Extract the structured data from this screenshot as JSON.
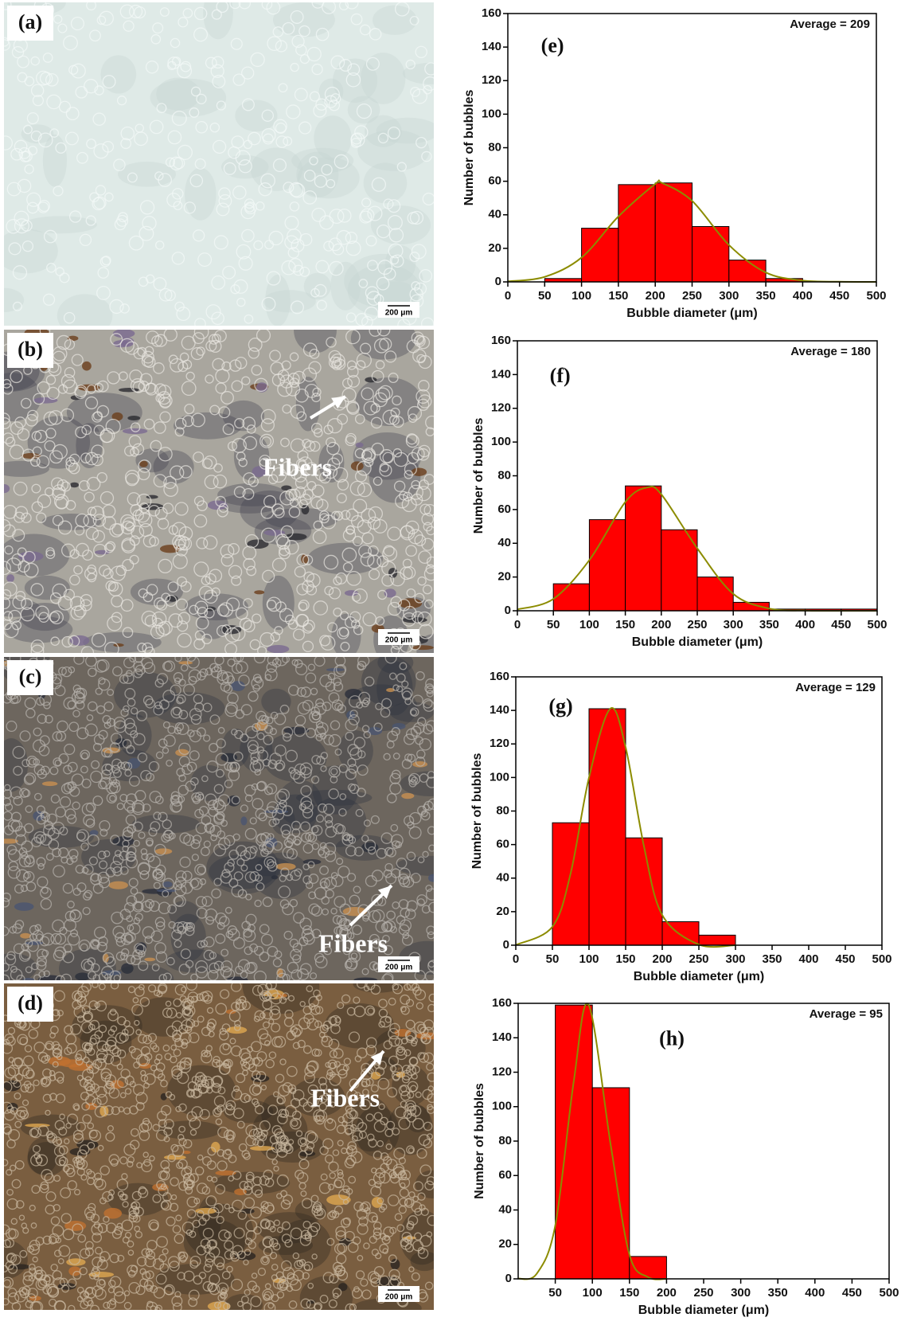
{
  "images": [
    {
      "label": "(a)",
      "scale_bar": "200 μm"
    },
    {
      "label": "(b)",
      "scale_bar": "200 μm",
      "annotation": "Fibers"
    },
    {
      "label": "(c)",
      "scale_bar": "200 μm",
      "annotation": "Fibers"
    },
    {
      "label": "(d)",
      "scale_bar": "200 μm",
      "annotation": "Fibers"
    }
  ],
  "chart_data": [
    {
      "type": "histogram",
      "title": "(e)",
      "annotation": "Average = 209",
      "x_label": "Bubble diameter (μm)",
      "y_label": "Number of bubbles",
      "color": "#ff0000",
      "bins": [
        0,
        50,
        100,
        150,
        200,
        250,
        300,
        350,
        400,
        450,
        500
      ],
      "values": [
        0,
        2,
        32,
        58,
        59,
        33,
        13,
        2,
        0,
        0
      ],
      "xlim": [
        0,
        500
      ],
      "xticks": [
        0,
        50,
        100,
        150,
        200,
        250,
        300,
        350,
        400,
        450,
        500
      ],
      "ylim": [
        0,
        160
      ],
      "yticks": [
        0,
        20,
        40,
        60,
        80,
        100,
        120,
        140,
        160
      ],
      "fit": {
        "color": "#8c8c00",
        "x": [
          0,
          50,
          100,
          150,
          200,
          209,
          250,
          300,
          350,
          400,
          450,
          500
        ],
        "values": [
          0.3,
          3,
          14.5,
          39,
          58.4,
          59,
          48.3,
          22,
          5.6,
          0.8,
          0.1,
          0
        ]
      }
    },
    {
      "type": "histogram",
      "title": "(f)",
      "annotation": "Average = 180",
      "x_label": "Bubble diameter (μm)",
      "y_label": "Number of bubbles",
      "color": "#ff0000",
      "bins": [
        0,
        50,
        100,
        150,
        200,
        250,
        300,
        350,
        400,
        450,
        500
      ],
      "values": [
        0,
        16,
        54,
        74,
        48,
        20,
        5,
        1,
        1,
        1
      ],
      "xlim": [
        0,
        500
      ],
      "xticks": [
        0,
        50,
        100,
        150,
        200,
        250,
        300,
        350,
        400,
        450,
        500
      ],
      "ylim": [
        0,
        160
      ],
      "yticks": [
        0,
        20,
        40,
        60,
        80,
        100,
        120,
        140,
        160
      ],
      "fit": {
        "color": "#8c8c00",
        "x": [
          0,
          50,
          100,
          150,
          180,
          200,
          250,
          300,
          350,
          400,
          450,
          500
        ],
        "values": [
          0.8,
          7,
          30,
          64.5,
          73,
          69,
          37,
          10,
          1.3,
          0.1,
          0,
          0
        ]
      }
    },
    {
      "type": "histogram",
      "title": "(g)",
      "annotation": "Average = 129",
      "x_label": "Bubble diameter (μm)",
      "y_label": "Number of bubbles",
      "color": "#ff0000",
      "bins": [
        0,
        50,
        100,
        150,
        200,
        250,
        300,
        350,
        400,
        450,
        500
      ],
      "values": [
        0,
        73,
        141,
        64,
        14,
        6,
        0,
        0,
        0,
        0
      ],
      "xlim": [
        0,
        500
      ],
      "xticks": [
        0,
        50,
        100,
        150,
        200,
        250,
        300,
        350,
        400,
        450,
        500
      ],
      "ylim": [
        0,
        160
      ],
      "yticks": [
        0,
        20,
        40,
        60,
        80,
        100,
        120,
        140,
        160
      ],
      "fit": {
        "color": "#8c8c00",
        "x": [
          0,
          50,
          75,
          100,
          129,
          150,
          175,
          200,
          250,
          300
        ],
        "values": [
          0.15,
          11,
          43,
          100,
          141,
          118,
          59,
          18,
          0.4,
          0
        ]
      }
    },
    {
      "type": "histogram",
      "title": "(h)",
      "annotation": "Average = 95",
      "x_label": "Bubble diameter (μm)",
      "y_label": "Number of bubbles",
      "color": "#ff0000",
      "bins": [
        0,
        50,
        100,
        150,
        200,
        250,
        300,
        350,
        400,
        450,
        500
      ],
      "values": [
        0,
        159,
        111,
        13,
        0,
        0,
        0,
        0,
        0,
        0
      ],
      "xlim": [
        0,
        500
      ],
      "xticks": [
        50,
        100,
        150,
        200,
        250,
        300,
        350,
        400,
        450,
        500
      ],
      "ylim": [
        0,
        160
      ],
      "yticks": [
        0,
        20,
        40,
        60,
        80,
        100,
        120,
        140,
        160
      ],
      "fit": {
        "color": "#8c8c00",
        "x": [
          0,
          25,
          50,
          75,
          95,
          125,
          150,
          175,
          200
        ],
        "values": [
          0.1,
          3,
          31,
          115,
          159,
          77,
          14,
          1,
          0
        ]
      }
    }
  ]
}
